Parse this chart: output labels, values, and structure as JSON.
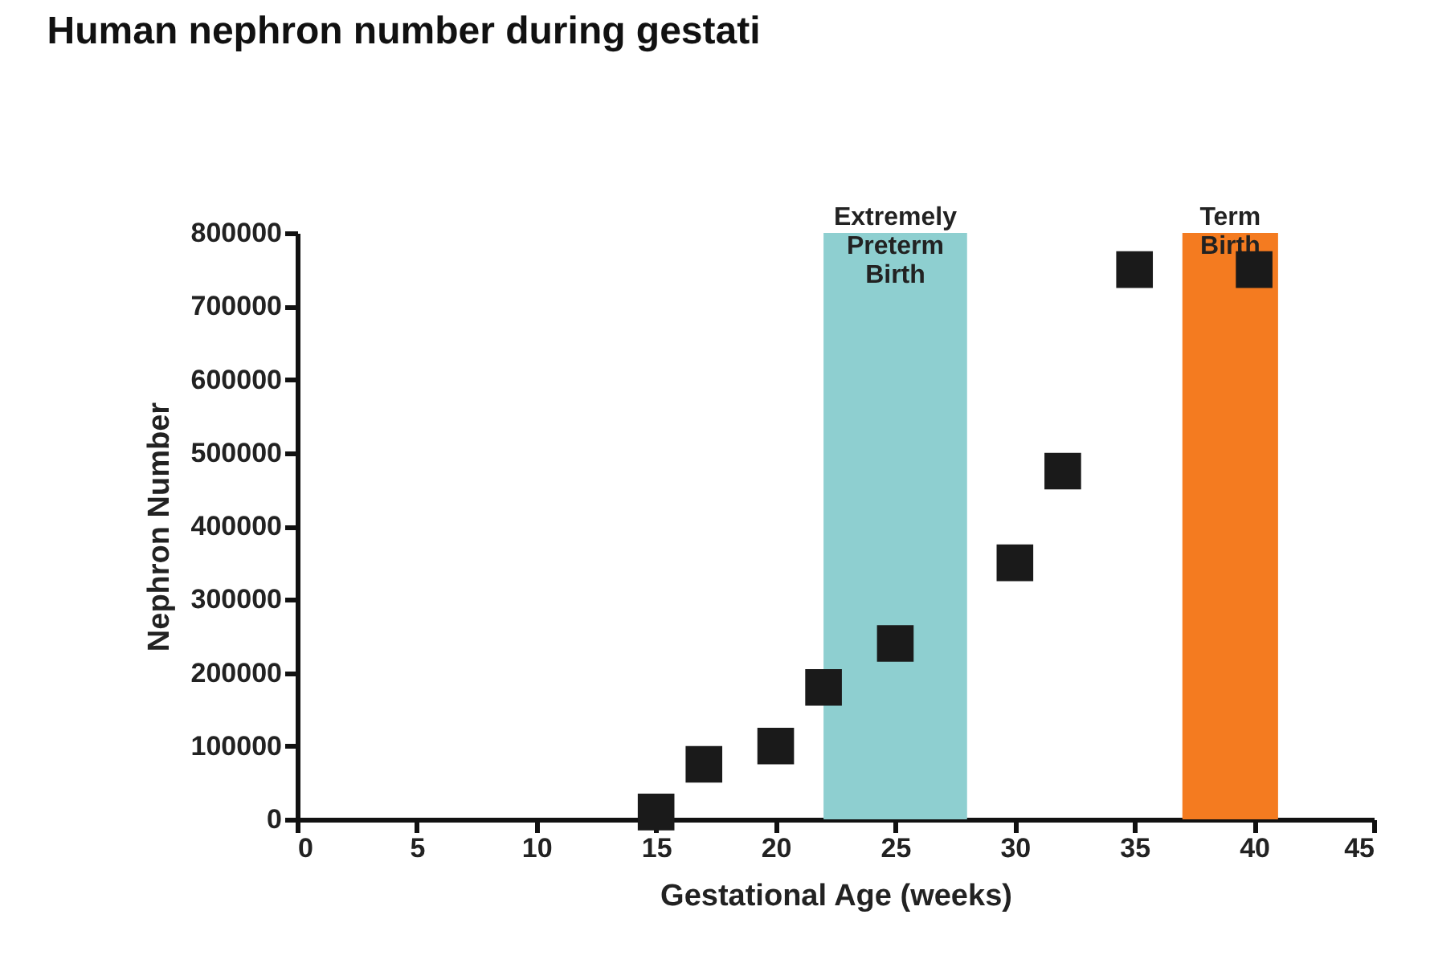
{
  "chart_data": {
    "type": "scatter",
    "title": "Human nephron number during gestati",
    "xlabel": "Gestational Age (weeks)",
    "ylabel": "Nephron Number",
    "x": [
      15,
      17,
      20,
      22,
      25,
      30,
      32,
      35,
      40
    ],
    "series": [
      {
        "color": "#1a1a1a",
        "values": [
          10000,
          75000,
          100000,
          180000,
          240000,
          350000,
          475000,
          750000,
          750000
        ]
      }
    ],
    "marker": "square",
    "xlim": [
      0,
      45
    ],
    "xticks": [
      0,
      5,
      10,
      15,
      20,
      25,
      30,
      35,
      40,
      45
    ],
    "ylim": [
      0,
      800000
    ],
    "yticks": [
      0,
      100000,
      200000,
      300000,
      400000,
      500000,
      600000,
      700000,
      800000
    ],
    "bands": [
      {
        "axis": "x",
        "from": 22,
        "to": 28,
        "label": "Extremely Preterm Birth",
        "color": "#8ecfd0"
      },
      {
        "axis": "x",
        "from": 37,
        "to": 41,
        "label": "Term Birth",
        "color": "#f47b20"
      }
    ]
  }
}
